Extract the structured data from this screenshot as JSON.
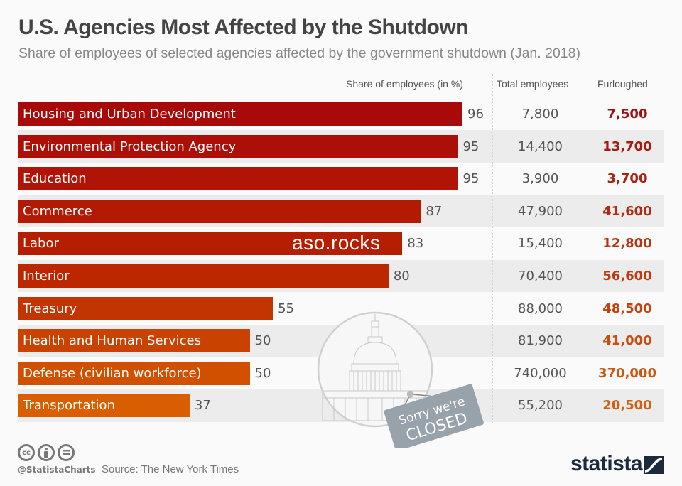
{
  "header": {
    "title": "U.S. Agencies Most Affected by the Shutdown",
    "subtitle": "Share of employees of selected agencies affected by the government shutdown (Jan. 2018)"
  },
  "columns": {
    "share": "Share of employees (in %)",
    "total": "Total employees",
    "furloughed": "Furloughed"
  },
  "watermark": "aso.rocks",
  "illustration": {
    "icon": "capitol-building-icon",
    "sign_line1": "Sorry we're",
    "sign_line2": "CLOSED"
  },
  "footer": {
    "license_icons": [
      "cc-icon",
      "attribution-icon",
      "no-derivatives-icon"
    ],
    "cc_text": "cc",
    "handle": "@StatistaCharts",
    "source": "Source: The New York Times",
    "brand": "statista"
  },
  "colors": {
    "bar_top": "#a80a0a",
    "bar_mid": "#b82000",
    "bar_bottom": "#d85e00",
    "furloughed_top": "#a01010",
    "furloughed_bottom": "#d26010",
    "stripe": "#ececec",
    "brand": "#1b2a3d"
  },
  "chart_data": {
    "type": "bar",
    "orientation": "horizontal",
    "title": "U.S. Agencies Most Affected by the Shutdown",
    "subtitle": "Share of employees of selected agencies affected by the government shutdown (Jan. 2018)",
    "xlabel": "Share of employees (in %)",
    "ylabel": "",
    "xlim": [
      0,
      100
    ],
    "grid": false,
    "legend": "none",
    "categories": [
      "Housing and Urban Development",
      "Environmental Protection Agency",
      "Education",
      "Commerce",
      "Labor",
      "Interior",
      "Treasury",
      "Health and Human Services",
      "Defense (civilian workforce)",
      "Transportation"
    ],
    "values": [
      96,
      95,
      95,
      87,
      83,
      80,
      55,
      50,
      50,
      37
    ],
    "table_columns": [
      {
        "name": "Total employees",
        "values": [
          "7,800",
          "14,400",
          "3,900",
          "47,900",
          "15,400",
          "70,400",
          "88,000",
          "81,900",
          "740,000",
          "55,200"
        ]
      },
      {
        "name": "Furloughed",
        "values": [
          "7,500",
          "13,700",
          "3,700",
          "41,600",
          "12,800",
          "56,600",
          "48,500",
          "41,000",
          "370,000",
          "20,500"
        ]
      }
    ],
    "source": "The New York Times"
  }
}
